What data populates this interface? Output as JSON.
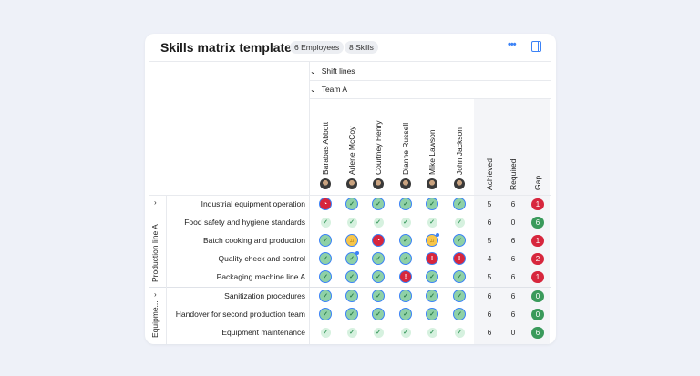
{
  "header": {
    "title": "Skills matrix template",
    "employees_badge": "6 Employees",
    "skills_badge": "8 Skills",
    "more_icon": "more-horizontal-icon",
    "panel_icon": "side-panel-icon"
  },
  "groups": {
    "shift": "Shift lines",
    "team": "Team A"
  },
  "employees": [
    "Barabas Abbott",
    "Arlene McCoy",
    "Courtney Henry",
    "Dianne Russell",
    "Mike Lawson",
    "John Jackson"
  ],
  "stat_headers": [
    "Achieved",
    "Required",
    "Gap"
  ],
  "colors": {
    "accent": "#3b82f6",
    "gap_negative": "#d7263d",
    "gap_positive": "#3a9a5b",
    "achieved": "#8fd1a6",
    "pending": "#f8c64a"
  },
  "sections": [
    {
      "label": "Production line A",
      "rows": [
        {
          "skill": "Industrial equipment operation",
          "cells": [
            "clock",
            "check",
            "check",
            "check",
            "check",
            "check"
          ],
          "dots": [],
          "achieved": "5",
          "required": "6",
          "gap": "1",
          "gap_status": "negative"
        },
        {
          "skill": "Food safety and hygiene standards",
          "cells": [
            "plain",
            "plain",
            "plain",
            "plain",
            "plain",
            "plain"
          ],
          "dots": [],
          "achieved": "6",
          "required": "0",
          "gap": "6",
          "gap_status": "positive"
        },
        {
          "skill": "Batch cooking and production",
          "cells": [
            "check",
            "bell",
            "clock",
            "check",
            "bell",
            "check"
          ],
          "dots": [
            4
          ],
          "achieved": "5",
          "required": "6",
          "gap": "1",
          "gap_status": "negative"
        },
        {
          "skill": "Quality check and control",
          "cells": [
            "check",
            "check",
            "check",
            "check",
            "alert",
            "alert"
          ],
          "dots": [
            1
          ],
          "achieved": "4",
          "required": "6",
          "gap": "2",
          "gap_status": "negative"
        },
        {
          "skill": "Packaging machine line A",
          "cells": [
            "check",
            "check",
            "check",
            "alert",
            "check",
            "check"
          ],
          "dots": [],
          "achieved": "5",
          "required": "6",
          "gap": "1",
          "gap_status": "negative"
        }
      ]
    },
    {
      "label": "Equipme...",
      "rows": [
        {
          "skill": "Sanitization procedures",
          "cells": [
            "check",
            "check",
            "check",
            "check",
            "check",
            "check"
          ],
          "dots": [],
          "achieved": "6",
          "required": "6",
          "gap": "0",
          "gap_status": "positive"
        },
        {
          "skill": "Handover for second production team",
          "cells": [
            "check",
            "check",
            "check",
            "check",
            "check",
            "check"
          ],
          "dots": [],
          "achieved": "6",
          "required": "6",
          "gap": "0",
          "gap_status": "positive"
        },
        {
          "skill": "Equipment maintenance",
          "cells": [
            "plain",
            "plain",
            "plain",
            "plain",
            "plain",
            "plain"
          ],
          "dots": [],
          "achieved": "6",
          "required": "0",
          "gap": "6",
          "gap_status": "positive"
        }
      ]
    }
  ]
}
